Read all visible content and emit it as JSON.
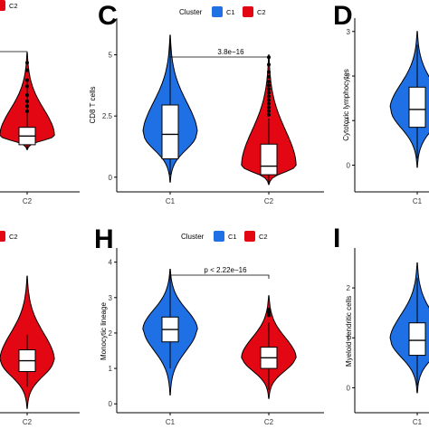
{
  "colors": {
    "C1": "#1f6fe5",
    "C2": "#e30613",
    "axis": "#000000",
    "background": "#ffffff"
  },
  "legend_labels": {
    "title": "Cluster",
    "c1": "C1",
    "c2": "C2"
  },
  "chart_data": [
    {
      "panel": "",
      "type": "violin",
      "clip": "left-top",
      "categories": [
        "",
        "C2"
      ],
      "yticks": [],
      "ylim": [
        -0.4,
        1.0
      ],
      "legend": {
        "title": "",
        "labels": [
          "",
          "C2"
        ]
      },
      "pvalue": "",
      "series": [
        {
          "name": "C2",
          "x": 1,
          "median": 0.05,
          "q1": -0.02,
          "q3": 0.12,
          "whisker_low": -0.06,
          "whisker_high": 0.5,
          "vmin": -0.06,
          "vmax": 0.72,
          "outliers": [
            0.25,
            0.29,
            0.33,
            0.38,
            0.45,
            0.5,
            0.58,
            0.64
          ]
        }
      ]
    },
    {
      "panel": "C",
      "type": "violin",
      "categories": [
        "C1",
        "C2"
      ],
      "ylabel": "CD8 T cells",
      "yticks": [
        0.0,
        2.5,
        5.0
      ],
      "ylim": [
        -0.6,
        6.5
      ],
      "legend": {
        "title": "Cluster",
        "labels": [
          "C1",
          "C2"
        ]
      },
      "pvalue": "3.8e−16",
      "series": [
        {
          "name": "C1",
          "x": 0,
          "median": 1.75,
          "q1": 0.75,
          "q3": 2.95,
          "whisker_low": 0.1,
          "whisker_high": 5.6,
          "vmin": -0.2,
          "vmax": 5.8,
          "outliers": []
        },
        {
          "name": "C2",
          "x": 1,
          "median": 0.45,
          "q1": 0.1,
          "q3": 1.35,
          "whisker_low": -0.25,
          "whisker_high": 2.4,
          "vmin": -0.3,
          "vmax": 5.0,
          "outliers": [
            2.55,
            2.7,
            2.85,
            3.0,
            3.15,
            3.3,
            3.45,
            3.6,
            3.75,
            3.9,
            4.1,
            4.3,
            4.6,
            4.9
          ]
        }
      ]
    },
    {
      "panel": "D",
      "type": "violin",
      "clip": "right",
      "categories": [
        "C1"
      ],
      "ylabel": "Cytotoxic lymphocytes",
      "yticks": [
        0,
        1,
        2,
        3
      ],
      "ylim": [
        -0.6,
        3.3
      ],
      "legend": {
        "title": "",
        "labels": []
      },
      "pvalue": "",
      "series": [
        {
          "name": "C1",
          "x": 0,
          "median": 1.25,
          "q1": 0.85,
          "q3": 1.75,
          "whisker_low": 0.15,
          "whisker_high": 2.7,
          "vmin": -0.05,
          "vmax": 3.0,
          "outliers": []
        }
      ]
    },
    {
      "panel": "",
      "type": "violin",
      "clip": "left-bottom",
      "categories": [
        "",
        "C2"
      ],
      "yticks": [],
      "ylim": [
        0.2,
        4.0
      ],
      "legend": {
        "title": "",
        "labels": [
          "",
          "C2"
        ]
      },
      "pvalue": "",
      "series": [
        {
          "name": "C2",
          "x": 1,
          "median": 1.4,
          "q1": 1.15,
          "q3": 1.65,
          "whisker_low": 0.8,
          "whisker_high": 2.0,
          "vmin": 0.3,
          "vmax": 3.35,
          "outliers": []
        }
      ]
    },
    {
      "panel": "H",
      "type": "violin",
      "categories": [
        "C1",
        "C2"
      ],
      "ylabel": "Monocytic lineage",
      "yticks": [
        0,
        1,
        2,
        3,
        4
      ],
      "ylim": [
        -0.25,
        4.4
      ],
      "legend": {
        "title": "Cluster",
        "labels": [
          "C1",
          "C2"
        ]
      },
      "pvalue": "p < 2.22e−16",
      "series": [
        {
          "name": "C1",
          "x": 0,
          "median": 2.1,
          "q1": 1.75,
          "q3": 2.45,
          "whisker_low": 1.0,
          "whisker_high": 3.6,
          "vmin": 0.25,
          "vmax": 3.8,
          "outliers": []
        },
        {
          "name": "C2",
          "x": 1,
          "median": 1.3,
          "q1": 1.0,
          "q3": 1.6,
          "whisker_low": 0.4,
          "whisker_high": 2.3,
          "vmin": 0.15,
          "vmax": 3.05,
          "outliers": [
            2.5,
            2.58,
            2.66
          ]
        }
      ]
    },
    {
      "panel": "I",
      "type": "violin",
      "clip": "right",
      "categories": [
        "C1"
      ],
      "ylabel": "Myeloid dendritic cells",
      "yticks": [
        0,
        1,
        2
      ],
      "ylim": [
        -0.5,
        2.8
      ],
      "legend": {
        "title": "",
        "labels": []
      },
      "pvalue": "",
      "series": [
        {
          "name": "C1",
          "x": 0,
          "median": 0.95,
          "q1": 0.65,
          "q3": 1.3,
          "whisker_low": 0.05,
          "whisker_high": 2.2,
          "vmin": -0.1,
          "vmax": 2.5,
          "outliers": []
        }
      ]
    }
  ]
}
